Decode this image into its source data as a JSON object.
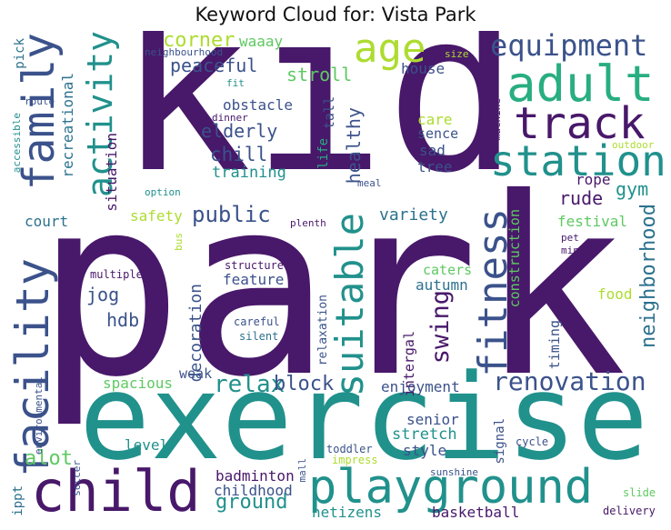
{
  "title": "Keyword Cloud for: Vista Park",
  "colors": {
    "purple": "#48186a",
    "indigo": "#3b528b",
    "blue": "#2c728e",
    "teal": "#21918c",
    "sea": "#28ae80",
    "green": "#5ec962",
    "lime": "#addc30"
  },
  "words": {
    "kid": "kid",
    "park": "park",
    "exercise": "exercise",
    "child": "child",
    "playground": "playground",
    "family": "family",
    "facility": "facility",
    "activity": "activity",
    "suitable": "suitable",
    "fitness": "fitness",
    "age": "age",
    "adult": "adult",
    "track": "track",
    "station": "station",
    "equipment": "equipment",
    "renovation": "renovation",
    "neighborhood": "neighborhood",
    "relax": "relax",
    "block": "block",
    "public": "public",
    "variety": "variety",
    "swing": "swing",
    "corner": "corner",
    "peaceful": "peaceful",
    "stroll": "stroll",
    "house": "house",
    "obstacle": "obstacle",
    "elderly": "elderly",
    "chill": "chill",
    "training": "training",
    "healthy": "healthy",
    "tall": "tall",
    "life": "life",
    "care": "care",
    "sence": "sence",
    "sad": "sad",
    "tree": "tree",
    "rope": "rope",
    "rude": "rude",
    "gym": "gym",
    "festival": "festival",
    "pet": "pet",
    "mini": "mini",
    "food": "food",
    "construction": "construction",
    "timing": "timing",
    "waaay": "waaay",
    "neighbourhood": "neighbourhood",
    "size": "size",
    "fit": "fit",
    "pick": "pick",
    "route": "route",
    "accessible": "accessible",
    "recreational": "recreational",
    "dinner": "dinner",
    "machine": "machine",
    "outdoor": "outdoor",
    "situation": "situation",
    "option": "option",
    "meal": "meal",
    "court": "court",
    "safety": "safety",
    "bus": "bus",
    "plenth": "plenth",
    "decoration": "decoration",
    "jog": "jog",
    "hdb": "hdb",
    "multiple": "multiple",
    "structure": "structure",
    "feature": "feature",
    "caters": "caters",
    "autumn": "autumn",
    "careful": "careful",
    "silent": "silent",
    "relaxation": "relaxation",
    "intergal": "intergal",
    "weak": "weak",
    "spacious": "spacious",
    "enjoyment": "enjoyment",
    "senior": "senior",
    "stretch": "stretch",
    "style": "style",
    "alot": "alot",
    "level": "level",
    "environmental": "environmental",
    "toddler": "toddler",
    "impress": "impress",
    "cycle": "cycle",
    "signal": "signal",
    "mall": "mall",
    "soccer": "soccer",
    "ippt": "ippt",
    "badminton": "badminton",
    "childhood": "childhood",
    "ground": "ground",
    "sunshine": "sunshine",
    "slide": "slide",
    "netizens": "netizens",
    "basketball": "basketball",
    "delivery": "delivery"
  }
}
